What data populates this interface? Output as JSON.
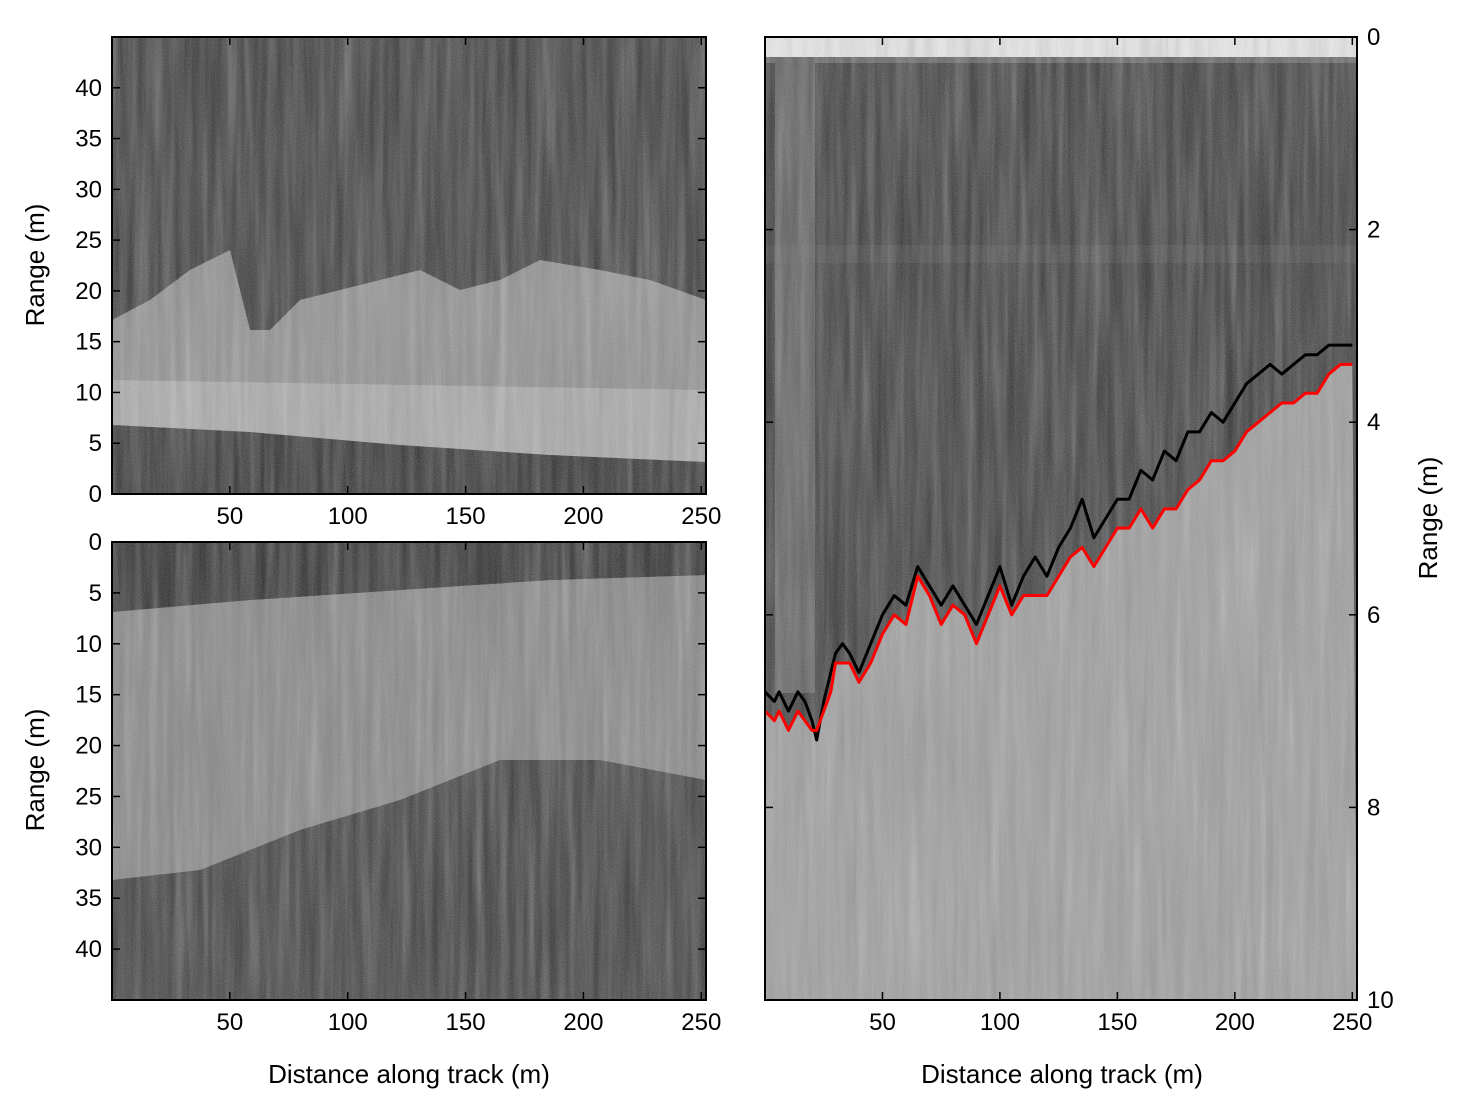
{
  "chart_data": [
    {
      "type": "heatmap",
      "panel": "top-left",
      "title": "",
      "xlabel": "",
      "ylabel": "Range (m)",
      "xlim": [
        0,
        252
      ],
      "ylim": [
        0,
        45
      ],
      "y_inverted": false,
      "xticks": [
        50,
        100,
        150,
        200,
        250
      ],
      "yticks": [
        0,
        5,
        10,
        15,
        20,
        25,
        30,
        35,
        40
      ],
      "colormap": "grayscale",
      "description_free": true
    },
    {
      "type": "heatmap",
      "panel": "bottom-left",
      "title": "",
      "xlabel": "Distance along track (m)",
      "ylabel": "Range (m)",
      "xlim": [
        0,
        252
      ],
      "ylim": [
        0,
        45
      ],
      "y_inverted": true,
      "xticks": [
        50,
        100,
        150,
        200,
        250
      ],
      "yticks": [
        0,
        5,
        10,
        15,
        20,
        25,
        30,
        35,
        40
      ],
      "colormap": "grayscale"
    },
    {
      "type": "line",
      "panel": "right",
      "title": "",
      "xlabel": "Distance along track (m)",
      "ylabel": "Range (m)",
      "ylabel_side": "right",
      "xlim": [
        0,
        252
      ],
      "ylim": [
        0,
        10
      ],
      "y_inverted": true,
      "xticks": [
        50,
        100,
        150,
        200,
        250
      ],
      "yticks": [
        0,
        2,
        4,
        6,
        8,
        10
      ],
      "background": "grayscale echogram",
      "series": [
        {
          "color": "#000000",
          "x": [
            0,
            4,
            6,
            10,
            14,
            17,
            20,
            22,
            25,
            28,
            30,
            33,
            36,
            40,
            45,
            50,
            55,
            60,
            65,
            70,
            75,
            80,
            85,
            90,
            95,
            100,
            105,
            110,
            115,
            120,
            125,
            130,
            135,
            140,
            145,
            150,
            155,
            160,
            165,
            170,
            175,
            180,
            185,
            190,
            195,
            200,
            205,
            210,
            215,
            220,
            225,
            230,
            235,
            240,
            245,
            250
          ],
          "y": [
            6.8,
            6.9,
            6.8,
            7.0,
            6.8,
            6.9,
            7.1,
            7.3,
            6.9,
            6.6,
            6.4,
            6.3,
            6.4,
            6.6,
            6.3,
            6.0,
            5.8,
            5.9,
            5.5,
            5.7,
            5.9,
            5.7,
            5.9,
            6.1,
            5.8,
            5.5,
            5.9,
            5.6,
            5.4,
            5.6,
            5.3,
            5.1,
            4.8,
            5.2,
            5.0,
            4.8,
            4.8,
            4.5,
            4.6,
            4.3,
            4.4,
            4.1,
            4.1,
            3.9,
            4.0,
            3.8,
            3.6,
            3.5,
            3.4,
            3.5,
            3.4,
            3.3,
            3.3,
            3.2,
            3.2,
            3.2
          ]
        },
        {
          "color": "#ff0000",
          "x": [
            0,
            4,
            6,
            10,
            14,
            17,
            20,
            22,
            25,
            28,
            30,
            33,
            36,
            40,
            45,
            50,
            55,
            60,
            65,
            70,
            75,
            80,
            85,
            90,
            95,
            100,
            105,
            110,
            115,
            120,
            125,
            130,
            135,
            140,
            145,
            150,
            155,
            160,
            165,
            170,
            175,
            180,
            185,
            190,
            195,
            200,
            205,
            210,
            215,
            220,
            225,
            230,
            235,
            240,
            245,
            250
          ],
          "y": [
            7.0,
            7.1,
            7.0,
            7.2,
            7.0,
            7.1,
            7.2,
            7.2,
            7.0,
            6.8,
            6.5,
            6.5,
            6.5,
            6.7,
            6.5,
            6.2,
            6.0,
            6.1,
            5.6,
            5.8,
            6.1,
            5.9,
            6.0,
            6.3,
            6.0,
            5.7,
            6.0,
            5.8,
            5.8,
            5.8,
            5.6,
            5.4,
            5.3,
            5.5,
            5.3,
            5.1,
            5.1,
            4.9,
            5.1,
            4.9,
            4.9,
            4.7,
            4.6,
            4.4,
            4.4,
            4.3,
            4.1,
            4.0,
            3.9,
            3.8,
            3.8,
            3.7,
            3.7,
            3.5,
            3.4,
            3.4
          ]
        }
      ]
    }
  ]
}
